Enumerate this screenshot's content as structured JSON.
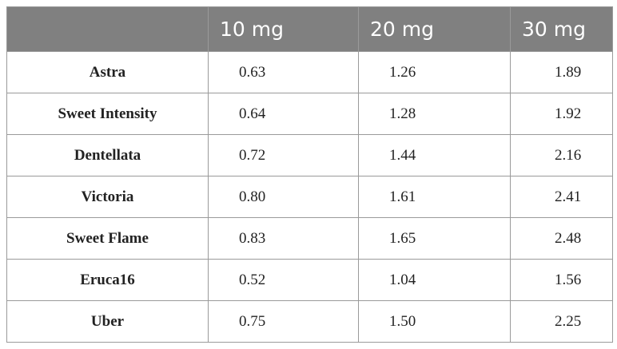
{
  "table": {
    "headers": [
      "",
      "10 mg",
      "20 mg",
      "30 mg"
    ],
    "rows": [
      {
        "label": "Astra",
        "values": [
          "0.63",
          "1.26",
          "1.89"
        ]
      },
      {
        "label": "Sweet Intensity",
        "values": [
          "0.64",
          "1.28",
          "1.92"
        ]
      },
      {
        "label": "Dentellata",
        "values": [
          "0.72",
          "1.44",
          "2.16"
        ]
      },
      {
        "label": "Victoria",
        "values": [
          "0.80",
          "1.61",
          "2.41"
        ]
      },
      {
        "label": "Sweet Flame",
        "values": [
          "0.83",
          "1.65",
          "2.48"
        ]
      },
      {
        "label": "Eruca16",
        "values": [
          "0.52",
          "1.04",
          "1.56"
        ]
      },
      {
        "label": "Uber",
        "values": [
          "0.75",
          "1.50",
          "2.25"
        ]
      }
    ]
  },
  "colors": {
    "header_bg": "#808080",
    "header_text": "#ffffff",
    "border": "#9a9a9a",
    "body_text": "#222222"
  }
}
